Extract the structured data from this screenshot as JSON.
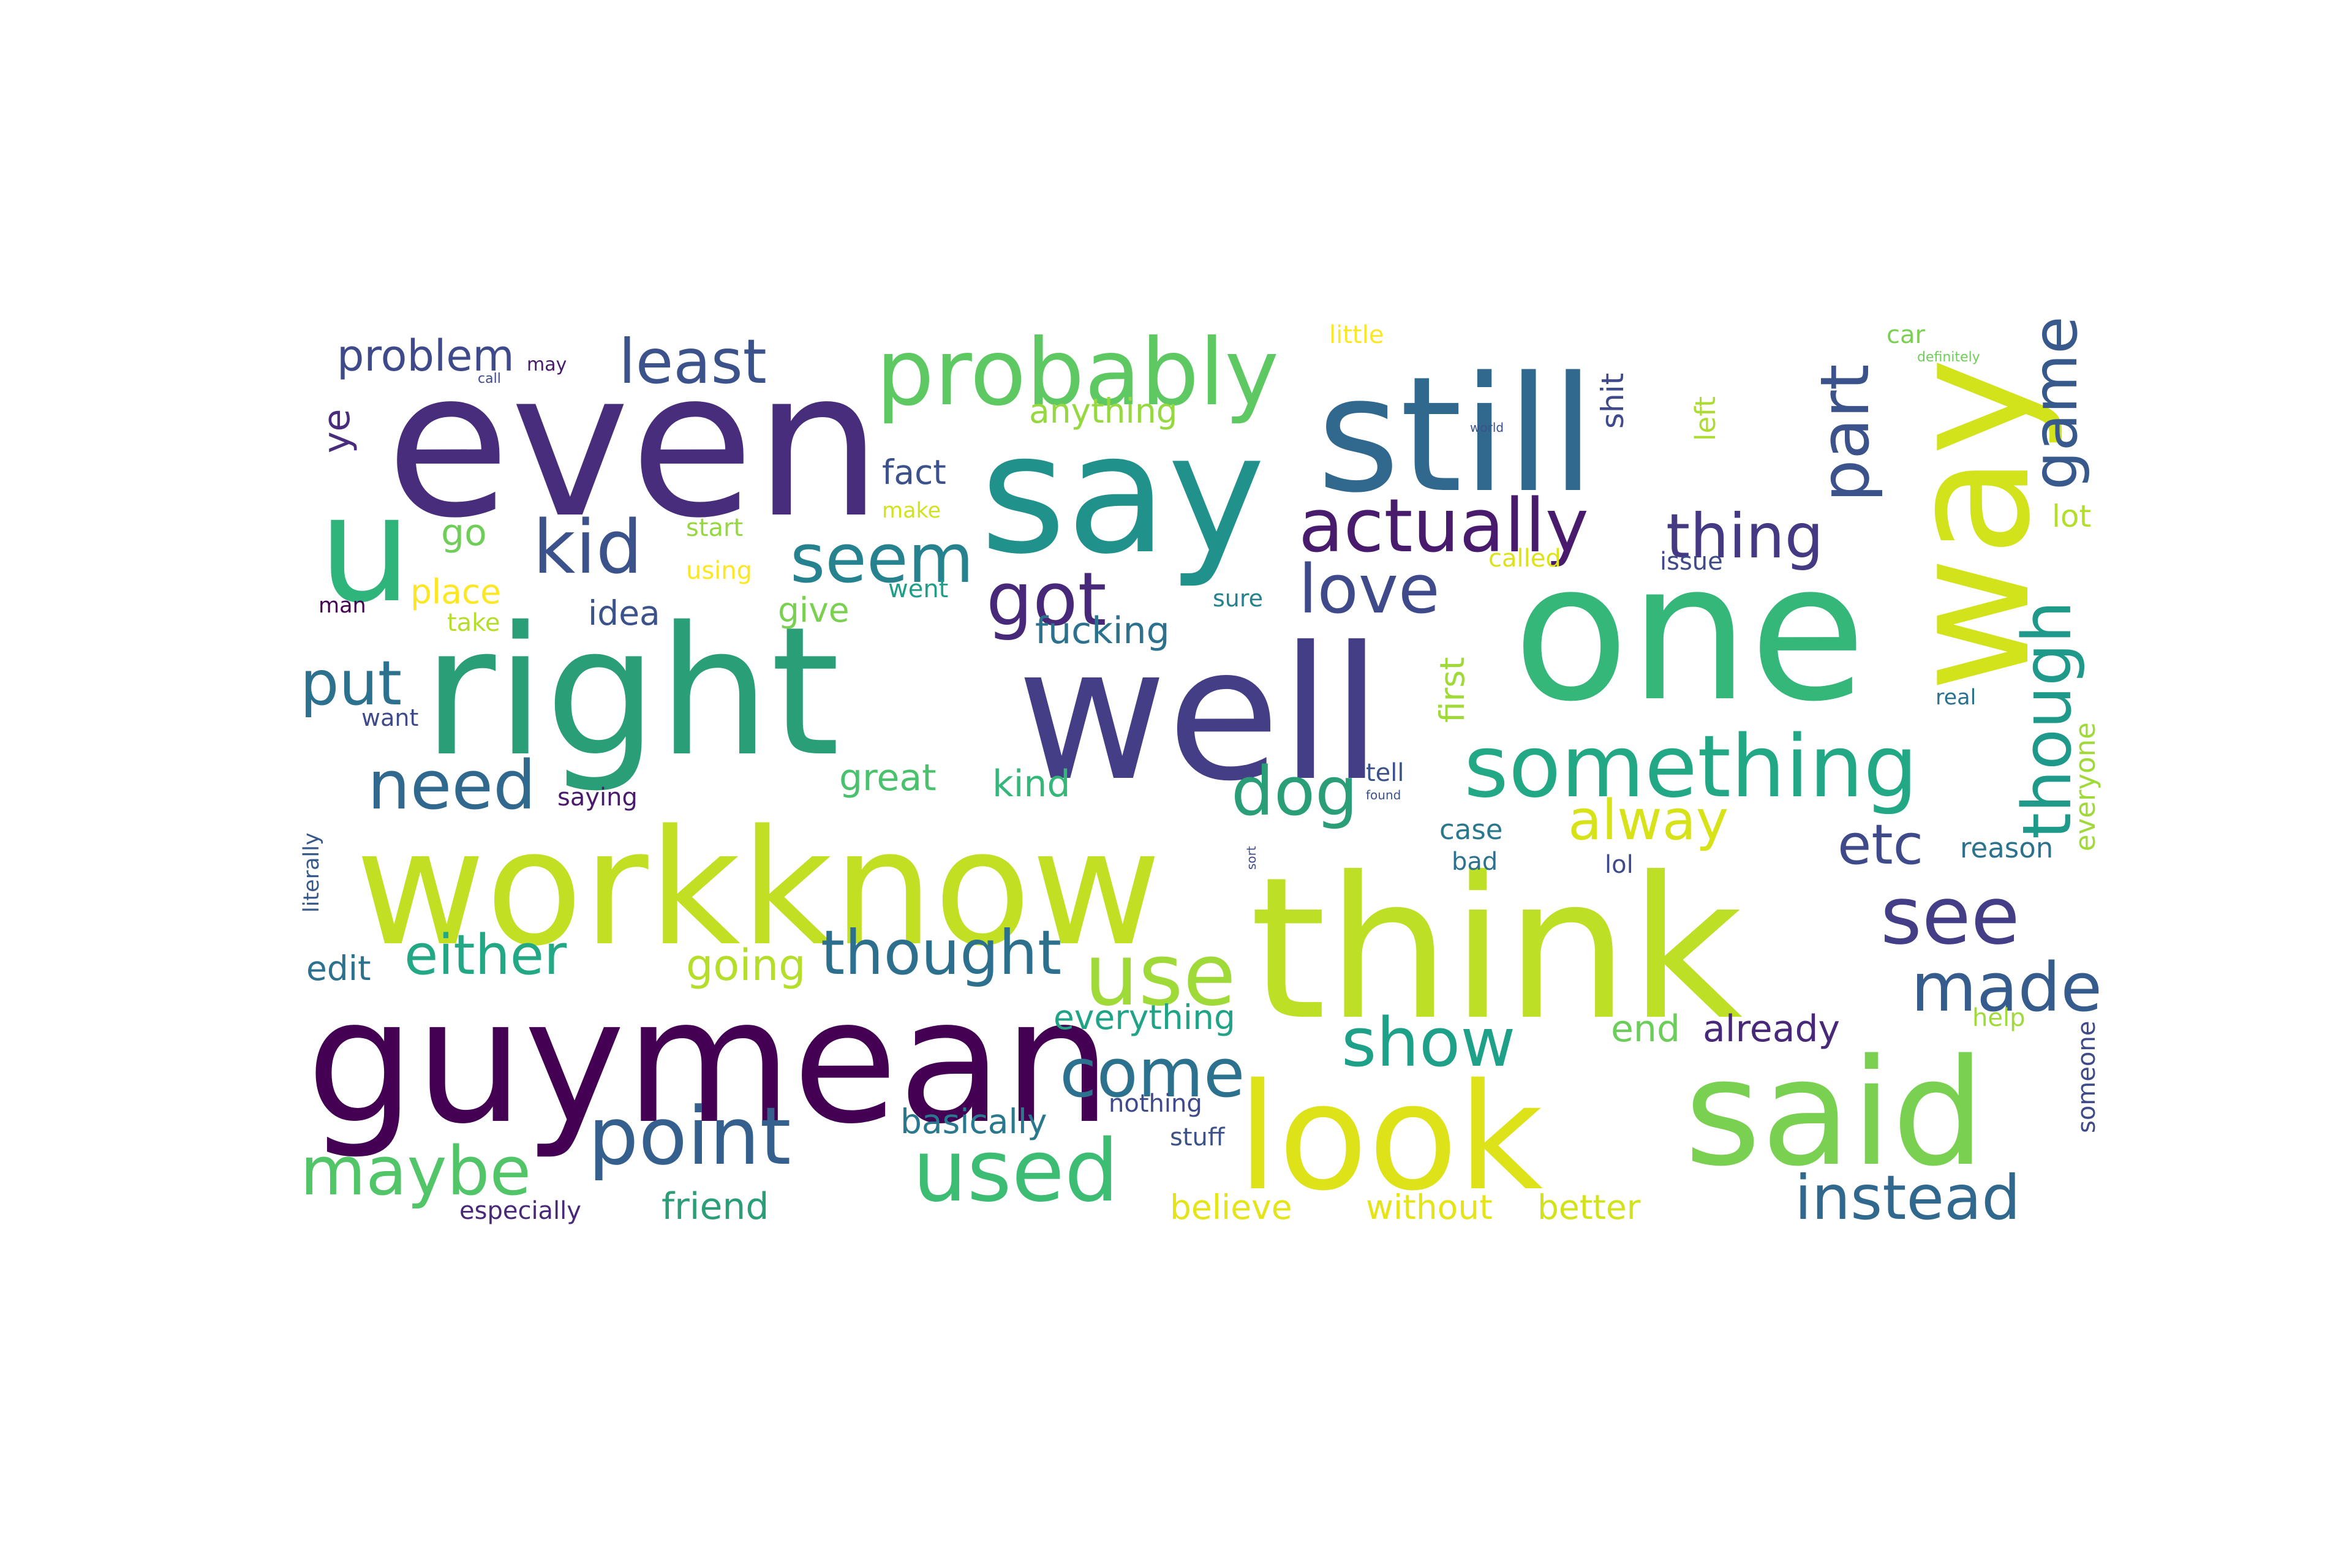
{
  "words": [
    {
      "text": "even",
      "color": "#472d7b"
    },
    {
      "text": "say",
      "color": "#21918c"
    },
    {
      "text": "still",
      "color": "#31688e"
    },
    {
      "text": "way",
      "color": "#d2e21b"
    },
    {
      "text": "u",
      "color": "#2fb47c"
    },
    {
      "text": "probably",
      "color": "#5ec962"
    },
    {
      "text": "least",
      "color": "#3b528b"
    },
    {
      "text": "problem",
      "color": "#3e4a89"
    },
    {
      "text": "right",
      "color": "#2a9e76"
    },
    {
      "text": "well",
      "color": "#433e85"
    },
    {
      "text": "one",
      "color": "#35b779"
    },
    {
      "text": "workknow",
      "color": "#c2df23"
    },
    {
      "text": "think",
      "color": "#bddf26"
    },
    {
      "text": "guymean",
      "color": "#440154"
    },
    {
      "text": "look",
      "color": "#dde318"
    },
    {
      "text": "said",
      "color": "#7ad151"
    },
    {
      "text": "kid",
      "color": "#3b528b"
    },
    {
      "text": "seem",
      "color": "#26828e"
    },
    {
      "text": "got",
      "color": "#482878"
    },
    {
      "text": "actually",
      "color": "#481b6d"
    },
    {
      "text": "thing",
      "color": "#443983"
    },
    {
      "text": "love",
      "color": "#3e4a89"
    },
    {
      "text": "part",
      "color": "#3b528b"
    },
    {
      "text": "game",
      "color": "#38598c"
    },
    {
      "text": "though",
      "color": "#1f9a8a"
    },
    {
      "text": "something",
      "color": "#22a884"
    },
    {
      "text": "put",
      "color": "#2c718e"
    },
    {
      "text": "need",
      "color": "#31688e"
    },
    {
      "text": "dog",
      "color": "#2a9e76"
    },
    {
      "text": "alway",
      "color": "#d8e219"
    },
    {
      "text": "etc",
      "color": "#3e4a89"
    },
    {
      "text": "see",
      "color": "#433e85"
    },
    {
      "text": "either",
      "color": "#22a884"
    },
    {
      "text": "thought",
      "color": "#2d708e"
    },
    {
      "text": "use",
      "color": "#a0da39"
    },
    {
      "text": "made",
      "color": "#365c8d"
    },
    {
      "text": "show",
      "color": "#1fa088"
    },
    {
      "text": "come",
      "color": "#2c728e"
    },
    {
      "text": "point",
      "color": "#355f8d"
    },
    {
      "text": "maybe",
      "color": "#52c569"
    },
    {
      "text": "used",
      "color": "#3dbc74"
    },
    {
      "text": "instead",
      "color": "#31688e"
    },
    {
      "text": "going",
      "color": "#b5de2b"
    },
    {
      "text": "already",
      "color": "#482878"
    },
    {
      "text": "end",
      "color": "#6ccd5a"
    },
    {
      "text": "friend",
      "color": "#2a9e76"
    },
    {
      "text": "basically",
      "color": "#2a788e"
    },
    {
      "text": "better",
      "color": "#d2e21b"
    },
    {
      "text": "without",
      "color": "#e5e419"
    },
    {
      "text": "believe",
      "color": "#e5e419"
    },
    {
      "text": "great",
      "color": "#4ac16d"
    },
    {
      "text": "kind",
      "color": "#35b779"
    },
    {
      "text": "fucking",
      "color": "#2c728e"
    },
    {
      "text": "give",
      "color": "#7ad151"
    },
    {
      "text": "fact",
      "color": "#3b528b"
    },
    {
      "text": "anything",
      "color": "#95d840"
    },
    {
      "text": "little",
      "color": "#fde725"
    },
    {
      "text": "car",
      "color": "#7ad151"
    },
    {
      "text": "definitely",
      "color": "#6ece58"
    },
    {
      "text": "shit",
      "color": "#3e4a89"
    },
    {
      "text": "left",
      "color": "#addc30"
    },
    {
      "text": "lot",
      "color": "#b5de2b"
    },
    {
      "text": "issue",
      "color": "#3e4a89"
    },
    {
      "text": "called",
      "color": "#dde318"
    },
    {
      "text": "sure",
      "color": "#26828e"
    },
    {
      "text": "first",
      "color": "#a0da39"
    },
    {
      "text": "went",
      "color": "#1f9e89"
    },
    {
      "text": "ye",
      "color": "#472d7b"
    },
    {
      "text": "go",
      "color": "#6ece58"
    },
    {
      "text": "start",
      "color": "#95d840"
    },
    {
      "text": "using",
      "color": "#fde725"
    },
    {
      "text": "make",
      "color": "#d2e21b"
    },
    {
      "text": "place",
      "color": "#fde725"
    },
    {
      "text": "take",
      "color": "#b5de2b"
    },
    {
      "text": "idea",
      "color": "#3b528b"
    },
    {
      "text": "man",
      "color": "#440154"
    },
    {
      "text": "want",
      "color": "#3e4a89"
    },
    {
      "text": "saying",
      "color": "#481b6d"
    },
    {
      "text": "literally",
      "color": "#38598c"
    },
    {
      "text": "edit",
      "color": "#2c728e"
    },
    {
      "text": "especially",
      "color": "#482878"
    },
    {
      "text": "everything",
      "color": "#20a386"
    },
    {
      "text": "nothing",
      "color": "#3e4a89"
    },
    {
      "text": "stuff",
      "color": "#3b528b"
    },
    {
      "text": "help",
      "color": "#a0da39"
    },
    {
      "text": "someone",
      "color": "#3e4a89"
    },
    {
      "text": "reason",
      "color": "#2c728e"
    },
    {
      "text": "everyone",
      "color": "#a0da39"
    },
    {
      "text": "real",
      "color": "#2c728e"
    },
    {
      "text": "case",
      "color": "#2a788e"
    },
    {
      "text": "bad",
      "color": "#2c728e"
    },
    {
      "text": "lol",
      "color": "#3e4a89"
    },
    {
      "text": "tell",
      "color": "#3b528b"
    },
    {
      "text": "found",
      "color": "#3b528b"
    },
    {
      "text": "may",
      "color": "#481b6d"
    },
    {
      "text": "call",
      "color": "#3e4a89"
    },
    {
      "text": "world",
      "color": "#3b528b"
    },
    {
      "text": "sort",
      "color": "#3e4a89"
    }
  ]
}
